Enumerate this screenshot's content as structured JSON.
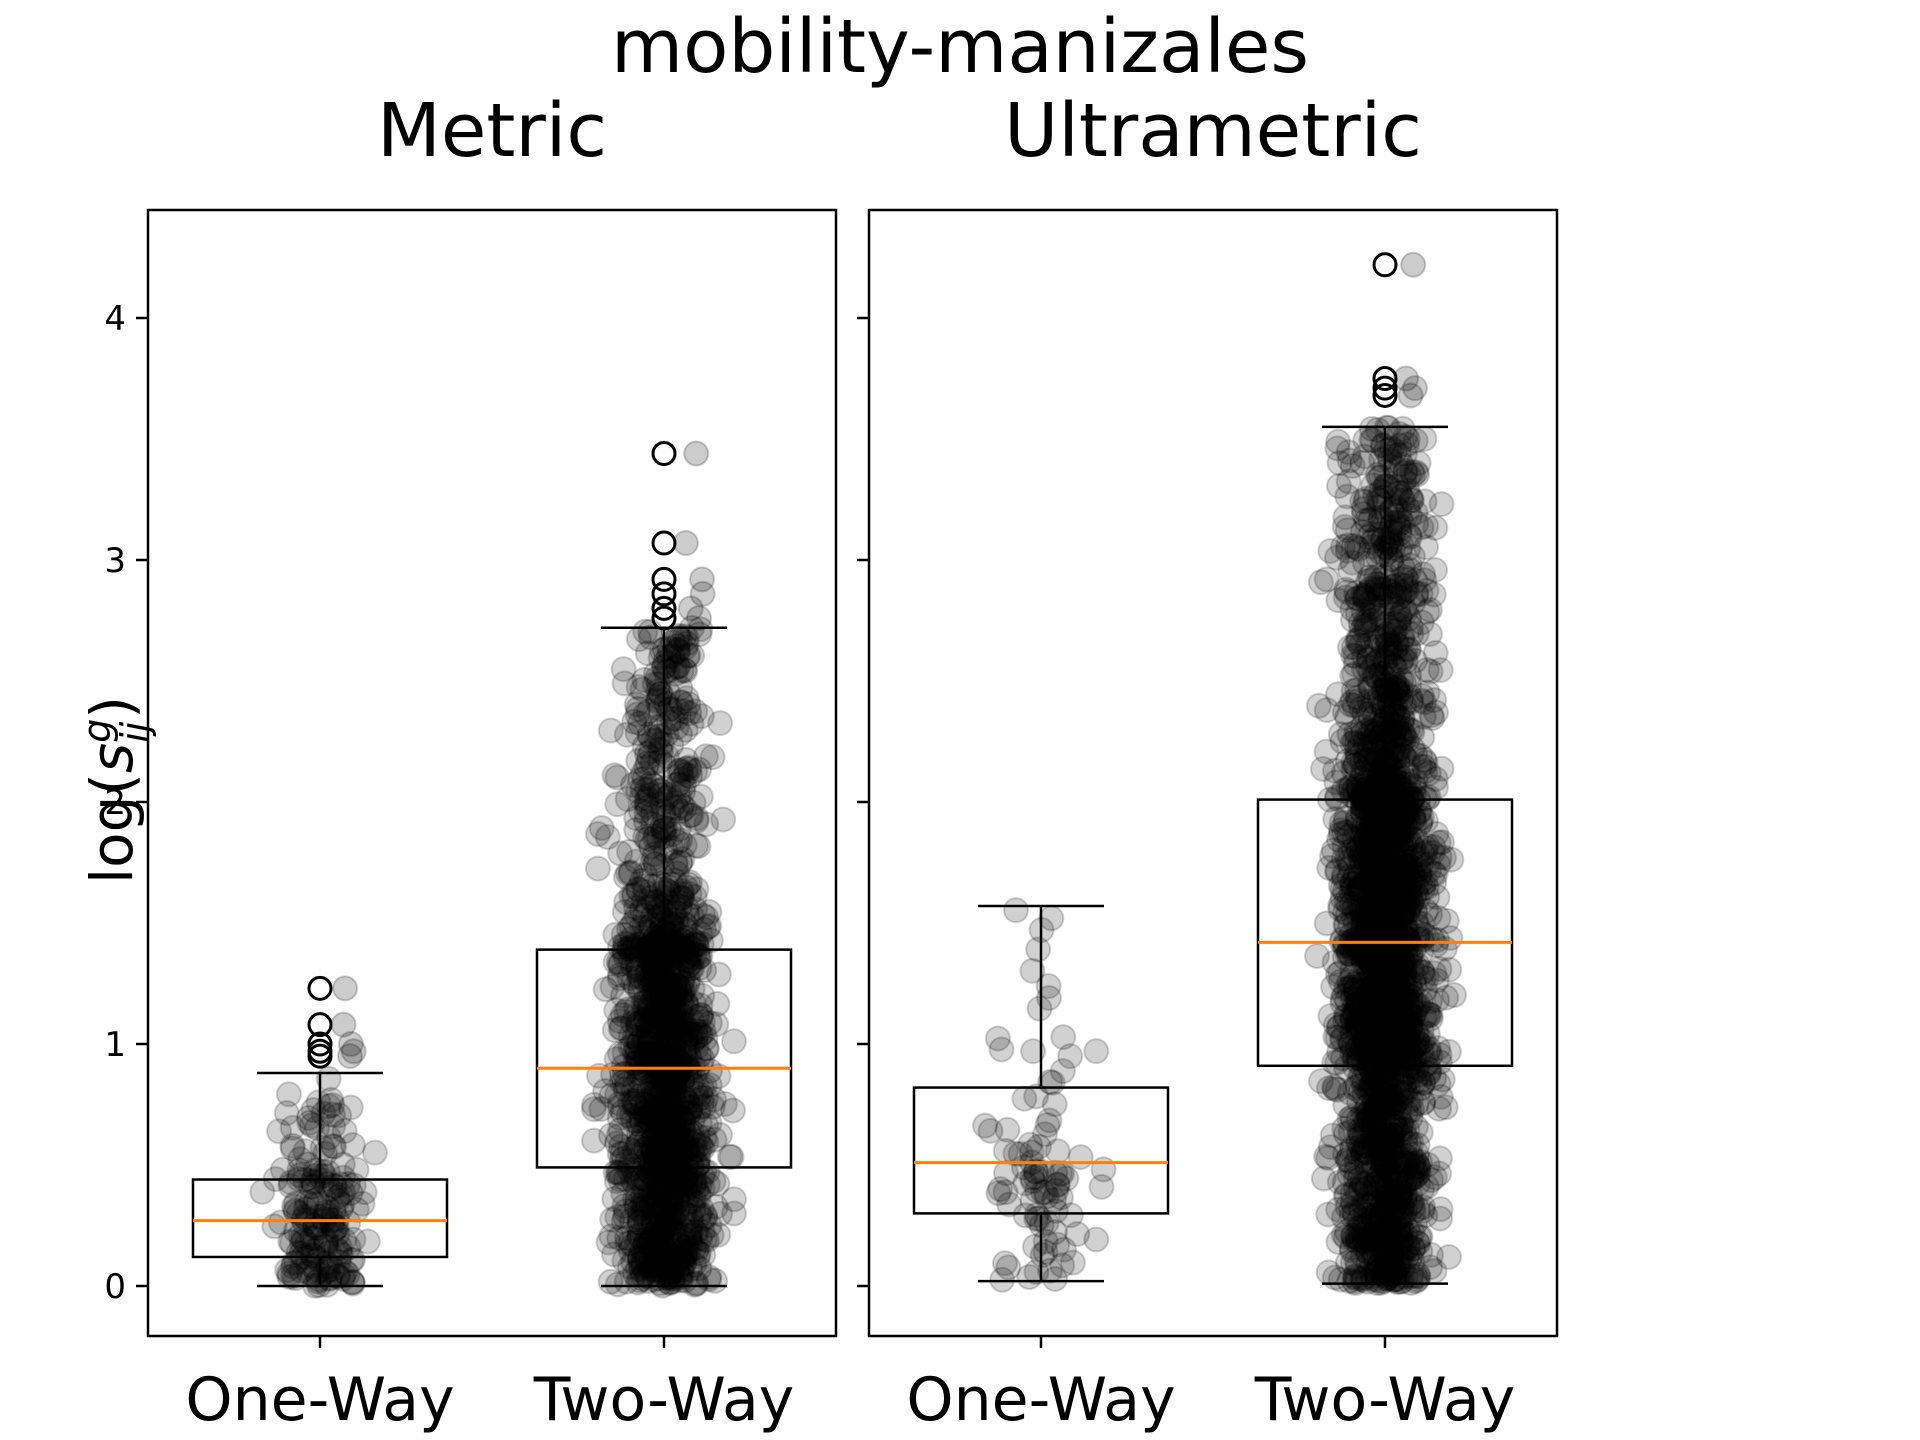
{
  "chart_data": {
    "title": "mobility-manizales",
    "ylabel": "log(s_ij^g)",
    "y_ticks": [
      "0",
      "1",
      "2",
      "3",
      "4"
    ],
    "y_tick_values": [
      0,
      1,
      2,
      3,
      4
    ],
    "ylim": [
      -0.2,
      4.45
    ],
    "panels": [
      {
        "type": "box+strip",
        "title": "Metric",
        "categories": [
          "One-Way",
          "Two-Way"
        ],
        "boxes": [
          {
            "category": "One-Way",
            "whisker_low": 0.0,
            "q1": 0.12,
            "median": 0.27,
            "q3": 0.44,
            "whisker_high": 0.88,
            "outliers": [
              0.95,
              0.97,
              1.0,
              1.08,
              1.23
            ]
          },
          {
            "category": "Two-Way",
            "whisker_low": 0.0,
            "q1": 0.49,
            "median": 0.9,
            "q3": 1.39,
            "whisker_high": 2.72,
            "outliers": [
              2.76,
              2.8,
              2.86,
              2.92,
              3.07,
              3.44
            ]
          }
        ],
        "point_counts": [
          180,
          1500
        ]
      },
      {
        "type": "box+strip",
        "title": "Ultrametric",
        "categories": [
          "One-Way",
          "Two-Way"
        ],
        "boxes": [
          {
            "category": "One-Way",
            "whisker_low": 0.02,
            "q1": 0.3,
            "median": 0.51,
            "q3": 0.82,
            "whisker_high": 1.57,
            "outliers": []
          },
          {
            "category": "Two-Way",
            "whisker_low": 0.01,
            "q1": 0.91,
            "median": 1.42,
            "q3": 2.01,
            "whisker_high": 3.55,
            "outliers": [
              3.68,
              3.71,
              3.75,
              4.22
            ]
          }
        ],
        "point_counts": [
          90,
          2500
        ]
      }
    ],
    "colors": {
      "median": "#ff7f0e",
      "points": "#000000",
      "box": "#000000"
    },
    "grid": false
  }
}
